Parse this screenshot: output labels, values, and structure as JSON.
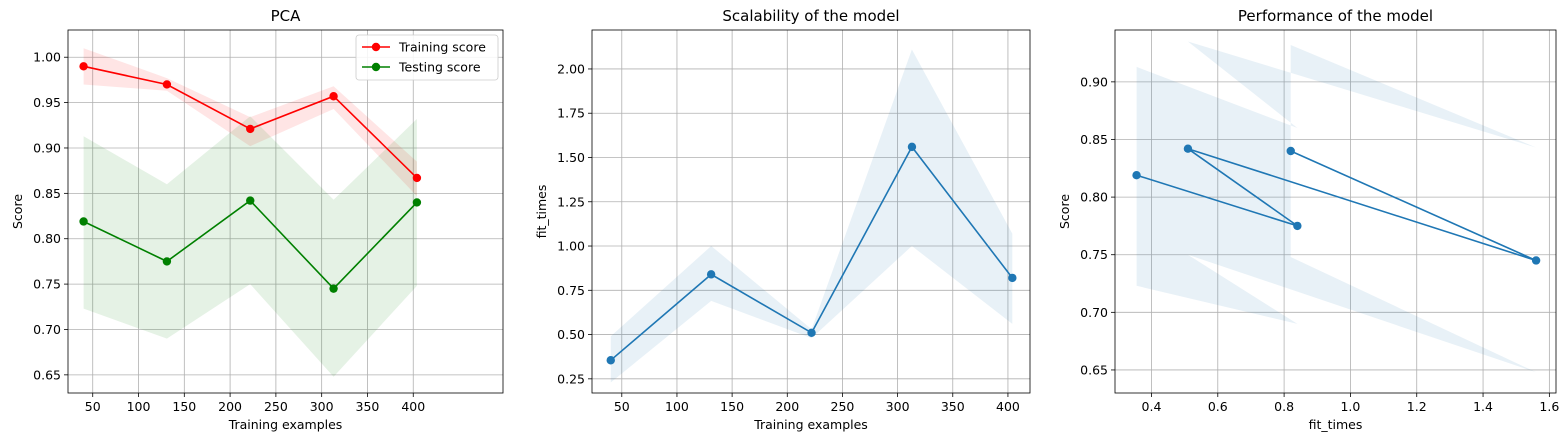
{
  "chart_data": [
    {
      "type": "line",
      "title": "PCA",
      "xlabel": "Training examples",
      "ylabel": "Score",
      "xlim": [
        23,
        498
      ],
      "ylim": [
        0.63,
        1.03
      ],
      "xticks": [
        50,
        100,
        150,
        200,
        250,
        300,
        350,
        400
      ],
      "yticks": [
        0.65,
        0.7,
        0.75,
        0.8,
        0.85,
        0.9,
        0.95,
        1.0
      ],
      "ytick_labels": [
        "0.65",
        "0.70",
        "0.75",
        "0.80",
        "0.85",
        "0.90",
        "0.95",
        "1.00"
      ],
      "grid": true,
      "legend": "top-right",
      "x": [
        40,
        131,
        222,
        313,
        404
      ],
      "series": [
        {
          "name": "Training score",
          "color": "#ff0000",
          "values": [
            0.99,
            0.97,
            0.921,
            0.957,
            0.867
          ],
          "band_low": [
            0.97,
            0.963,
            0.902,
            0.943,
            0.847
          ],
          "band_high": [
            1.01,
            0.977,
            0.934,
            0.968,
            0.885
          ]
        },
        {
          "name": "Testing score",
          "color": "#008000",
          "values": [
            0.819,
            0.775,
            0.842,
            0.745,
            0.84
          ],
          "band_low": [
            0.723,
            0.69,
            0.75,
            0.648,
            0.748
          ],
          "band_high": [
            0.913,
            0.86,
            0.935,
            0.843,
            0.932
          ]
        }
      ]
    },
    {
      "type": "line",
      "title": "Scalability of the model",
      "xlabel": "Training examples",
      "ylabel": "fit_times",
      "xlim": [
        23,
        420
      ],
      "ylim": [
        0.17,
        2.22
      ],
      "xticks": [
        50,
        100,
        150,
        200,
        250,
        300,
        350,
        400
      ],
      "yticks": [
        0.25,
        0.5,
        0.75,
        1.0,
        1.25,
        1.5,
        1.75,
        2.0
      ],
      "ytick_labels": [
        "0.25",
        "0.50",
        "0.75",
        "1.00",
        "1.25",
        "1.50",
        "1.75",
        "2.00"
      ],
      "grid": true,
      "x": [
        40,
        131,
        222,
        313,
        404
      ],
      "series": [
        {
          "color": "#1f77b4",
          "values": [
            0.355,
            0.84,
            0.51,
            1.56,
            0.82
          ],
          "band_low": [
            0.23,
            0.69,
            0.48,
            1.0,
            0.56
          ],
          "band_high": [
            0.49,
            1.0,
            0.53,
            2.11,
            1.07
          ]
        }
      ]
    },
    {
      "type": "line",
      "title": "Performance of the model",
      "xlabel": "fit_times",
      "ylabel": "Score",
      "xlim": [
        0.29,
        1.62
      ],
      "ylim": [
        0.63,
        0.945
      ],
      "xticks": [
        0.4,
        0.6,
        0.8,
        1.0,
        1.2,
        1.4,
        1.6
      ],
      "xtick_labels": [
        "0.4",
        "0.6",
        "0.8",
        "1.0",
        "1.2",
        "1.4",
        "1.6"
      ],
      "yticks": [
        0.65,
        0.7,
        0.75,
        0.8,
        0.85,
        0.9
      ],
      "ytick_labels": [
        "0.65",
        "0.70",
        "0.75",
        "0.80",
        "0.85",
        "0.90"
      ],
      "grid": true,
      "series": [
        {
          "color": "#1f77b4",
          "x": [
            0.355,
            0.84,
            0.51,
            1.56,
            0.82
          ],
          "values": [
            0.819,
            0.775,
            0.842,
            0.745,
            0.84
          ],
          "band_low": [
            0.723,
            0.69,
            0.75,
            0.648,
            0.748
          ],
          "band_high": [
            0.913,
            0.86,
            0.935,
            0.843,
            0.932
          ]
        }
      ]
    }
  ]
}
